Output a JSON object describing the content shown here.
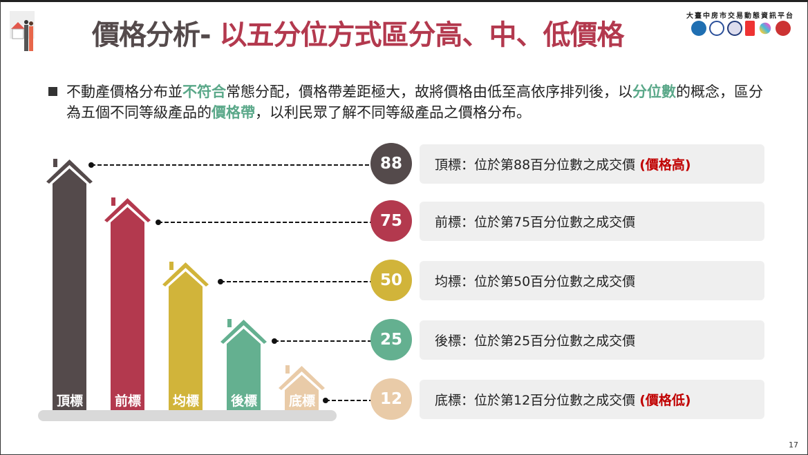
{
  "title": {
    "part1": "價格分析-",
    "part2": "以五分位方式區分高、中、低價格"
  },
  "brand": "大臺中房市交易動態資訊平台",
  "logos": [
    "TIDA"
  ],
  "bullet": {
    "t1": "不動產價格分布並",
    "h1": "不符合",
    "t2": "常態分配，價格帶差距極大，故將價格由低至高依序排列後，以",
    "h2": "分位數",
    "t3": "的概念，區分為五個不同等級產品的",
    "h3": "價格帶",
    "t4": "，以利民眾了解不同等級產品之價格分布。"
  },
  "levels": [
    {
      "name": "頂標",
      "value": "88",
      "desc": "頂標：位於第88百分位數之成交價",
      "tag": "(價格高)",
      "color": "#544a4b"
    },
    {
      "name": "前標",
      "value": "75",
      "desc": "前標：位於第75百分位數之成交價",
      "tag": "",
      "color": "#b3394e"
    },
    {
      "name": "均標",
      "value": "50",
      "desc": "均標：位於第50百分位數之成交價",
      "tag": "",
      "color": "#d1b43a"
    },
    {
      "name": "後標",
      "value": "25",
      "desc": "後標：位於第25百分位數之成交價",
      "tag": "",
      "color": "#64b090"
    },
    {
      "name": "底標",
      "value": "12",
      "desc": "底標：位於第12百分位數之成交價",
      "tag": "(價格低)",
      "color": "#e9cba8"
    }
  ],
  "page_number": "17"
}
